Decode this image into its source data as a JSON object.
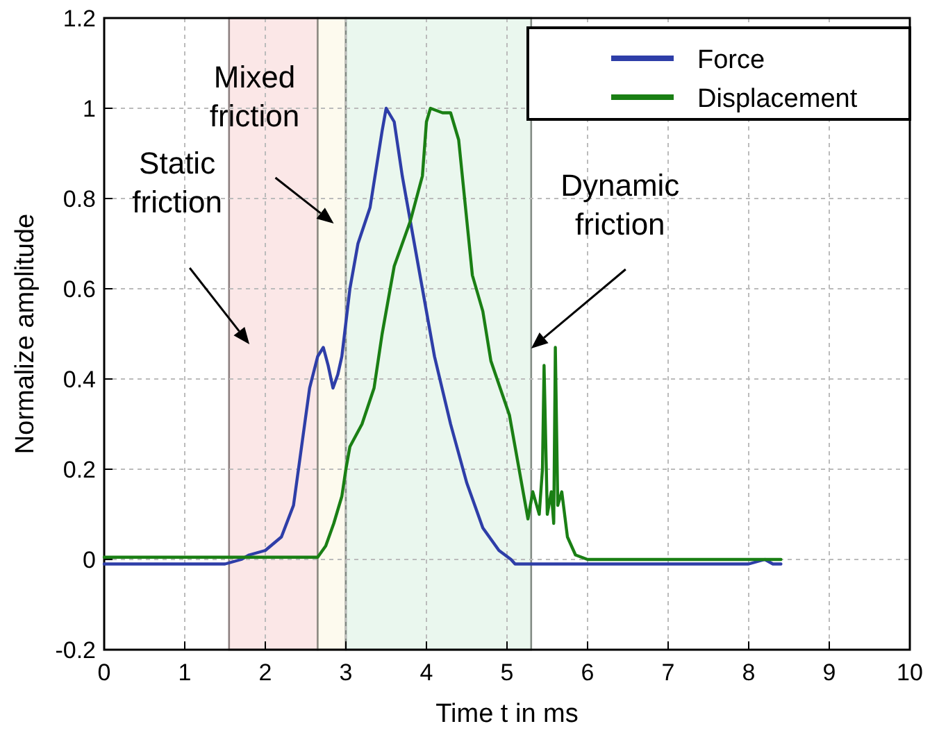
{
  "chart_data": {
    "type": "line",
    "xlabel": "Time t in ms",
    "ylabel": "Normalize amplitude",
    "xlim": [
      0,
      10
    ],
    "xticks": [
      0,
      1,
      2,
      3,
      4,
      5,
      6,
      7,
      8,
      9,
      10
    ],
    "ylim": [
      -0.2,
      1.2
    ],
    "yticks": [
      -0.2,
      0,
      0.2,
      0.4,
      0.6,
      0.8,
      1,
      1.2
    ],
    "grid": true,
    "legend": "top right",
    "line_style": "solid",
    "series": [
      {
        "name": "Force",
        "color": "#2e3ea8",
        "x": [
          0,
          0.5,
          1,
          1.5,
          1.7,
          1.8,
          2.0,
          2.2,
          2.35,
          2.45,
          2.55,
          2.65,
          2.72,
          2.78,
          2.84,
          2.9,
          2.95,
          3.05,
          3.15,
          3.3,
          3.45,
          3.5,
          3.6,
          3.7,
          3.8,
          3.95,
          4.1,
          4.3,
          4.5,
          4.7,
          4.9,
          5.05,
          5.1,
          5.5,
          6,
          6.5,
          7,
          7.5,
          8,
          8.2,
          8.3,
          8.4
        ],
        "values": [
          -0.01,
          -0.01,
          -0.01,
          -0.01,
          0,
          0.01,
          0.02,
          0.05,
          0.12,
          0.25,
          0.38,
          0.45,
          0.47,
          0.43,
          0.38,
          0.41,
          0.45,
          0.6,
          0.7,
          0.78,
          0.95,
          1,
          0.97,
          0.85,
          0.75,
          0.6,
          0.45,
          0.3,
          0.17,
          0.07,
          0.02,
          0,
          -0.01,
          -0.01,
          -0.01,
          -0.01,
          -0.01,
          -0.01,
          -0.01,
          0,
          -0.01,
          -0.01
        ]
      },
      {
        "name": "Displacement",
        "color": "#1a7f14",
        "x": [
          0,
          1,
          2,
          2.65,
          2.75,
          2.85,
          2.95,
          3.0,
          3.05,
          3.2,
          3.35,
          3.45,
          3.6,
          3.8,
          3.95,
          4.0,
          4.05,
          4.2,
          4.3,
          4.4,
          4.57,
          4.7,
          4.8,
          5.03,
          5.15,
          5.26,
          5.32,
          5.4,
          5.44,
          5.46,
          5.5,
          5.55,
          5.58,
          5.6,
          5.63,
          5.68,
          5.75,
          5.85,
          6,
          7,
          8,
          8.4
        ],
        "values": [
          0.005,
          0.005,
          0.005,
          0.005,
          0.03,
          0.08,
          0.14,
          0.2,
          0.25,
          0.3,
          0.38,
          0.5,
          0.65,
          0.75,
          0.85,
          0.97,
          1,
          0.99,
          0.99,
          0.93,
          0.63,
          0.55,
          0.44,
          0.32,
          0.2,
          0.09,
          0.15,
          0.1,
          0.2,
          0.43,
          0.1,
          0.15,
          0.08,
          0.47,
          0.12,
          0.15,
          0.05,
          0.01,
          0,
          0,
          0,
          0
        ]
      }
    ],
    "bands": [
      {
        "axis": "x",
        "from": 1.55,
        "to": 2.65,
        "color": "#fbe4e4",
        "label": "Static friction"
      },
      {
        "axis": "x",
        "from": 2.65,
        "to": 3.0,
        "color": "#fdfaec",
        "label": "Mixed friction"
      },
      {
        "axis": "x",
        "from": 3.0,
        "to": 5.3,
        "color": "#e8f6ec",
        "label": "Dynamic friction"
      }
    ]
  }
}
